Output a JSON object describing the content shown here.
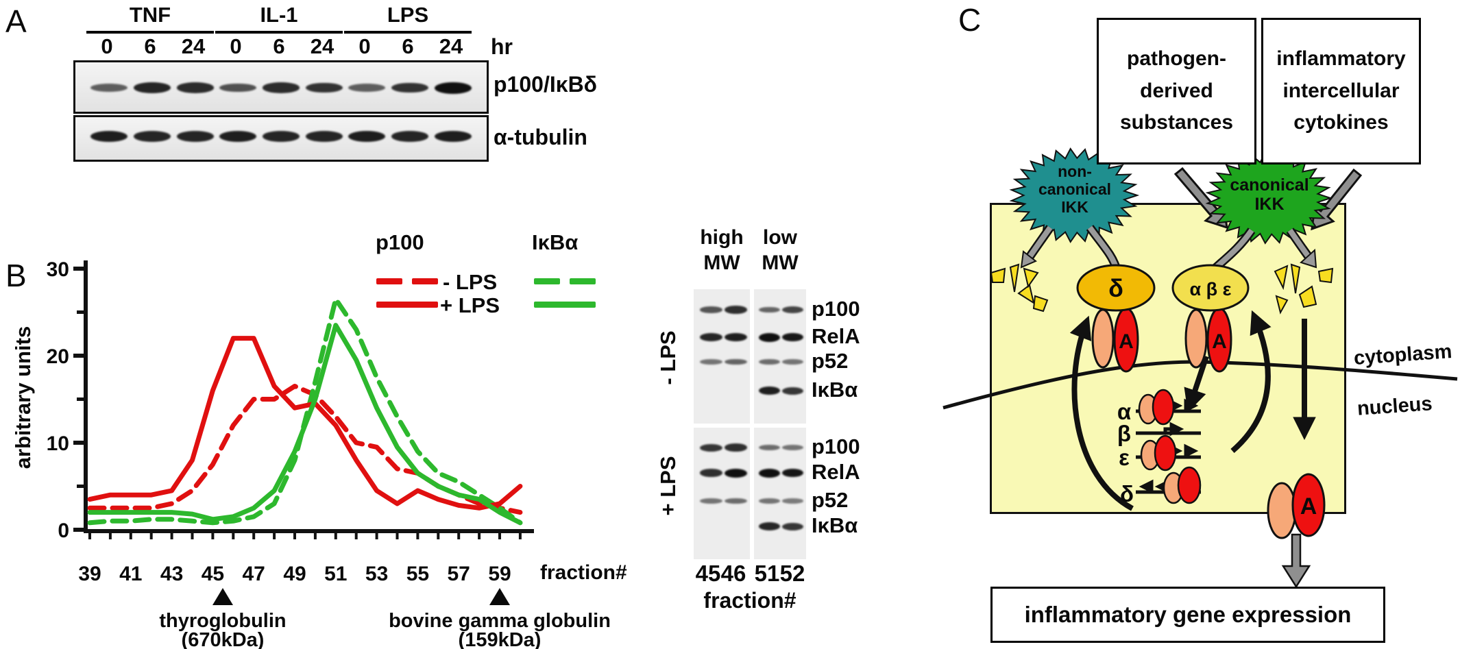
{
  "colors": {
    "red_series": "#e01010",
    "green_series": "#2db82d",
    "cell_fill": "#f9f9b5",
    "noncanonical_fill": "#1f8f8f",
    "canonical_fill": "#1ea51e",
    "delta_ellipse": "#f2ba05",
    "abe_ellipse": "#f2df4e",
    "salmon": "#f6a878",
    "red_subunit": "#ee1111",
    "fragment_yellow": "#f7dd20",
    "gray_arrow": "#8f8f8f"
  },
  "panel_a": {
    "label": "A",
    "groups": [
      "TNF",
      "IL-1",
      "LPS"
    ],
    "timepoints": [
      "0",
      "6",
      "24",
      "0",
      "6",
      "24",
      "0",
      "6",
      "24"
    ],
    "time_unit": "hr",
    "blots": [
      {
        "label": "p100/IκBδ",
        "band_intensities": [
          0.45,
          0.85,
          0.8,
          0.55,
          0.8,
          0.75,
          0.45,
          0.75,
          1.0
        ]
      },
      {
        "label": "α-tubulin",
        "band_intensities": [
          0.9,
          0.85,
          0.85,
          0.9,
          0.85,
          0.85,
          0.9,
          0.85,
          0.9
        ]
      }
    ]
  },
  "panel_b": {
    "label": "B",
    "blot": {
      "col_headers": [
        "high\nMW",
        "low\nMW"
      ],
      "conditions": [
        {
          "label": "- LPS",
          "rows": [
            {
              "label": "p100",
              "bands": [
                0.55,
                0.8,
                0.45,
                0.65
              ]
            },
            {
              "label": "RelA",
              "bands": [
                0.85,
                0.9,
                1.0,
                0.95
              ]
            },
            {
              "label": "p52",
              "bands": [
                0.35,
                0.45,
                0.4,
                0.35
              ]
            },
            {
              "label": "IκBα",
              "bands": [
                0,
                0,
                0.9,
                0.75
              ]
            }
          ]
        },
        {
          "label": "+ LPS",
          "rows": [
            {
              "label": "p100",
              "bands": [
                0.75,
                0.8,
                0.4,
                0.35
              ]
            },
            {
              "label": "RelA",
              "bands": [
                0.8,
                1.0,
                1.0,
                0.95
              ]
            },
            {
              "label": "p52",
              "bands": [
                0.35,
                0.4,
                0.35,
                0.3
              ]
            },
            {
              "label": "IκBα",
              "bands": [
                0,
                0,
                0.85,
                0.75
              ]
            }
          ]
        }
      ],
      "fractions": [
        "45",
        "46",
        "51",
        "52"
      ],
      "fraction_axis_label": "fraction#"
    }
  },
  "chart_data": {
    "type": "line",
    "title": "",
    "xlabel": "fraction#",
    "ylabel": "arbitrary units",
    "xlim": [
      39,
      60
    ],
    "ylim": [
      0,
      30
    ],
    "grid": false,
    "legend_position": "top-right",
    "yticks": [
      0,
      10,
      20,
      30
    ],
    "yticks_minor": [
      5,
      15,
      25
    ],
    "xtick_labels": [
      39,
      41,
      43,
      45,
      47,
      49,
      51,
      53,
      55,
      57,
      59
    ],
    "x": [
      39,
      40,
      41,
      42,
      43,
      44,
      45,
      46,
      47,
      48,
      49,
      50,
      51,
      52,
      53,
      54,
      55,
      56,
      57,
      58,
      59,
      60
    ],
    "series": [
      {
        "id": "p100-minus-lps",
        "name": "p100 - LPS",
        "color": "#e01010",
        "dashed": true,
        "values": [
          2.5,
          2.5,
          2.5,
          2.5,
          3,
          4.5,
          7.5,
          12,
          15,
          15,
          16.5,
          15.5,
          13,
          10,
          9.5,
          7,
          6.5,
          5,
          4,
          3,
          2.5,
          2
        ]
      },
      {
        "id": "ikba-minus-lps",
        "name": "IκBα - LPS",
        "color": "#2db82d",
        "dashed": true,
        "values": [
          0.8,
          1,
          1,
          1.2,
          1.2,
          1,
          0.8,
          1,
          1.5,
          3,
          8,
          17,
          26.5,
          23,
          17.5,
          13,
          9,
          6.5,
          5.5,
          4,
          2.5,
          0.8
        ]
      },
      {
        "id": "p100-plus-lps",
        "name": "p100 + LPS",
        "color": "#e01010",
        "dashed": false,
        "values": [
          3.5,
          4,
          4,
          4,
          4.5,
          8,
          16,
          22,
          22,
          16.5,
          14,
          14.5,
          12,
          8,
          4.5,
          3,
          4.5,
          3.5,
          2.8,
          2.5,
          3,
          5
        ]
      },
      {
        "id": "ikba-plus-lps",
        "name": "IκBα + LPS",
        "color": "#2db82d",
        "dashed": false,
        "values": [
          2,
          2,
          2,
          2,
          2,
          1.8,
          1.2,
          1.5,
          2.5,
          4.5,
          9,
          15,
          23.5,
          19.5,
          14,
          9.5,
          6.5,
          5,
          4,
          3.5,
          2,
          0.8
        ]
      }
    ],
    "legend": {
      "col1_header": "p100",
      "col2_header": "IκBα",
      "row1": "- LPS",
      "row2": "+ LPS"
    },
    "annotations": [
      {
        "text": "thyroglobulin",
        "sub": "(670kDa)",
        "x": 45.5
      },
      {
        "text": "bovine gamma globulin",
        "sub": "(159kDa)",
        "x": 59
      }
    ]
  },
  "panel_c": {
    "label": "C",
    "input_boxes": [
      "pathogen-\nderived\nsubstances",
      "inflammatory\nintercellular\ncytokines"
    ],
    "noncanonical_ikk": "non-\ncanonical\nIKK",
    "canonical_ikk": "canonical\nIKK",
    "delta_label": "δ",
    "abe_label": "α β ε",
    "subunit_a": "A",
    "cytoplasm": "cytoplasm",
    "nucleus": "nucleus",
    "genes": [
      {
        "name": "α"
      },
      {
        "name": "β"
      },
      {
        "name": "ε"
      },
      {
        "name": "δ"
      }
    ],
    "bottom_box": "inflammatory gene expression"
  }
}
